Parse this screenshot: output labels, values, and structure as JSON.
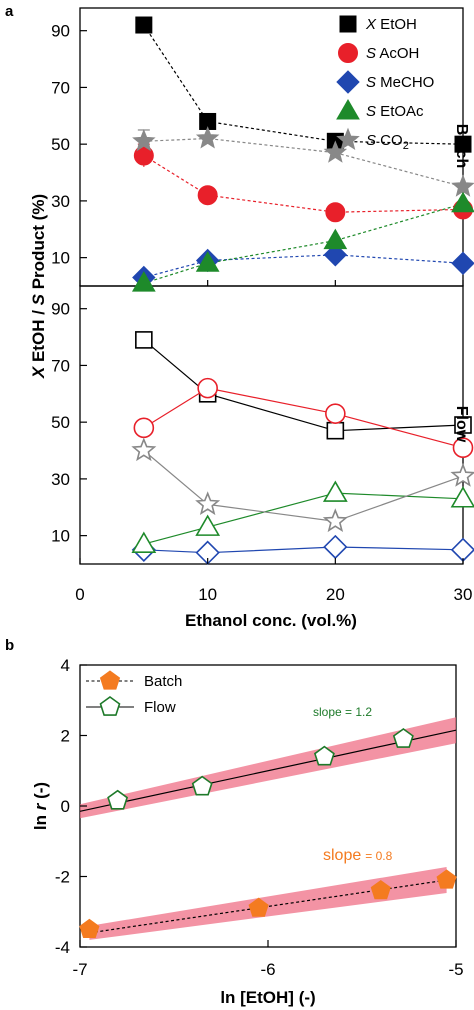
{
  "panel_a": {
    "letter": "a",
    "ylabel": "X EtOH / S Product (%)",
    "xlabel": "Ethanol conc. (vol.%)",
    "batch_label": "Batch",
    "flow_label": "Flow",
    "x_ticks": [
      "0",
      "10",
      "20",
      "30"
    ],
    "top_y_ticks": [
      "10",
      "30",
      "50",
      "70",
      "90"
    ],
    "bottom_y_ticks": [
      "10",
      "30",
      "50",
      "70",
      "90"
    ]
  },
  "panel_b": {
    "letter": "b",
    "ylabel": "ln r (-)",
    "xlabel": "ln [EtOH] (-)",
    "x_ticks": [
      "-7",
      "-6",
      "-5"
    ],
    "y_ticks": [
      "-4",
      "-2",
      "0",
      "2",
      "4"
    ],
    "slope_flow": "slope = 1.2",
    "slope_batch_word": "slope",
    "slope_batch_value": "= 0.8"
  },
  "legend_a": [
    {
      "italic": "X",
      "rest": " EtOH"
    },
    {
      "italic": "S",
      "rest": " AcOH"
    },
    {
      "italic": "S",
      "rest": " MeCHO"
    },
    {
      "italic": "S",
      "rest": " EtOAc"
    },
    {
      "italic": "S",
      "rest": " CO",
      "sub": "2"
    }
  ],
  "legend_b": [
    "Batch",
    "Flow"
  ],
  "colors": {
    "etoh": "#000000",
    "acoh": "#e8202a",
    "mecho": "#2047b0",
    "etoac": "#1e8a2a",
    "co2": "#888888",
    "batch": "#f47b20",
    "flow": "#1e7a2a",
    "band": "#ef6f86"
  },
  "chart_data": [
    {
      "type": "line",
      "title": "",
      "panel": "a",
      "subplot": "Batch",
      "xlabel": "Ethanol conc. (vol.%)",
      "ylabel": "X EtOH / S Product (%)",
      "xlim": [
        0,
        30
      ],
      "ylim": [
        0,
        98
      ],
      "x": [
        5,
        10,
        20,
        30
      ],
      "series": [
        {
          "name": "X EtOH",
          "marker": "square",
          "values": [
            92,
            58,
            51,
            50
          ]
        },
        {
          "name": "S AcOH",
          "marker": "circle",
          "values": [
            46,
            32,
            26,
            27
          ]
        },
        {
          "name": "S MeCHO",
          "marker": "diamond",
          "values": [
            3,
            9,
            11,
            8
          ]
        },
        {
          "name": "S EtOAc",
          "marker": "triangle",
          "values": [
            1,
            8,
            16,
            29
          ]
        },
        {
          "name": "S CO2",
          "marker": "star",
          "values": [
            51,
            52,
            47,
            35
          ]
        }
      ]
    },
    {
      "type": "line",
      "title": "",
      "panel": "a",
      "subplot": "Flow",
      "xlabel": "Ethanol conc. (vol.%)",
      "ylabel": "X EtOH / S Product (%)",
      "xlim": [
        0,
        30
      ],
      "ylim": [
        0,
        98
      ],
      "x": [
        5,
        10,
        20,
        30
      ],
      "series": [
        {
          "name": "X EtOH",
          "marker": "square",
          "values": [
            79,
            60,
            47,
            49
          ]
        },
        {
          "name": "S AcOH",
          "marker": "circle",
          "values": [
            48,
            62,
            53,
            41
          ]
        },
        {
          "name": "S MeCHO",
          "marker": "diamond",
          "values": [
            5,
            4,
            6,
            5
          ]
        },
        {
          "name": "S EtOAc",
          "marker": "triangle",
          "values": [
            7,
            13,
            25,
            23
          ]
        },
        {
          "name": "S CO2",
          "marker": "star",
          "values": [
            40,
            21,
            15,
            31
          ]
        }
      ]
    },
    {
      "type": "scatter",
      "title": "",
      "panel": "b",
      "xlabel": "ln [EtOH] (-)",
      "ylabel": "ln r (-)",
      "xlim": [
        -7,
        -5
      ],
      "ylim": [
        -4,
        4
      ],
      "series": [
        {
          "name": "Batch",
          "x": [
            -6.95,
            -6.05,
            -5.4,
            -5.05
          ],
          "y": [
            -3.5,
            -2.9,
            -2.4,
            -2.1
          ],
          "fit": {
            "slope": 0.8,
            "x": [
              -6.95,
              -5.05
            ],
            "y": [
              -3.6,
              -2.1
            ]
          }
        },
        {
          "name": "Flow",
          "x": [
            -6.8,
            -6.35,
            -5.7,
            -5.28
          ],
          "y": [
            0.15,
            0.55,
            1.4,
            1.9
          ],
          "fit": {
            "slope": 1.2,
            "x": [
              -7,
              -5
            ],
            "y": [
              -0.15,
              2.15
            ]
          }
        }
      ]
    }
  ]
}
